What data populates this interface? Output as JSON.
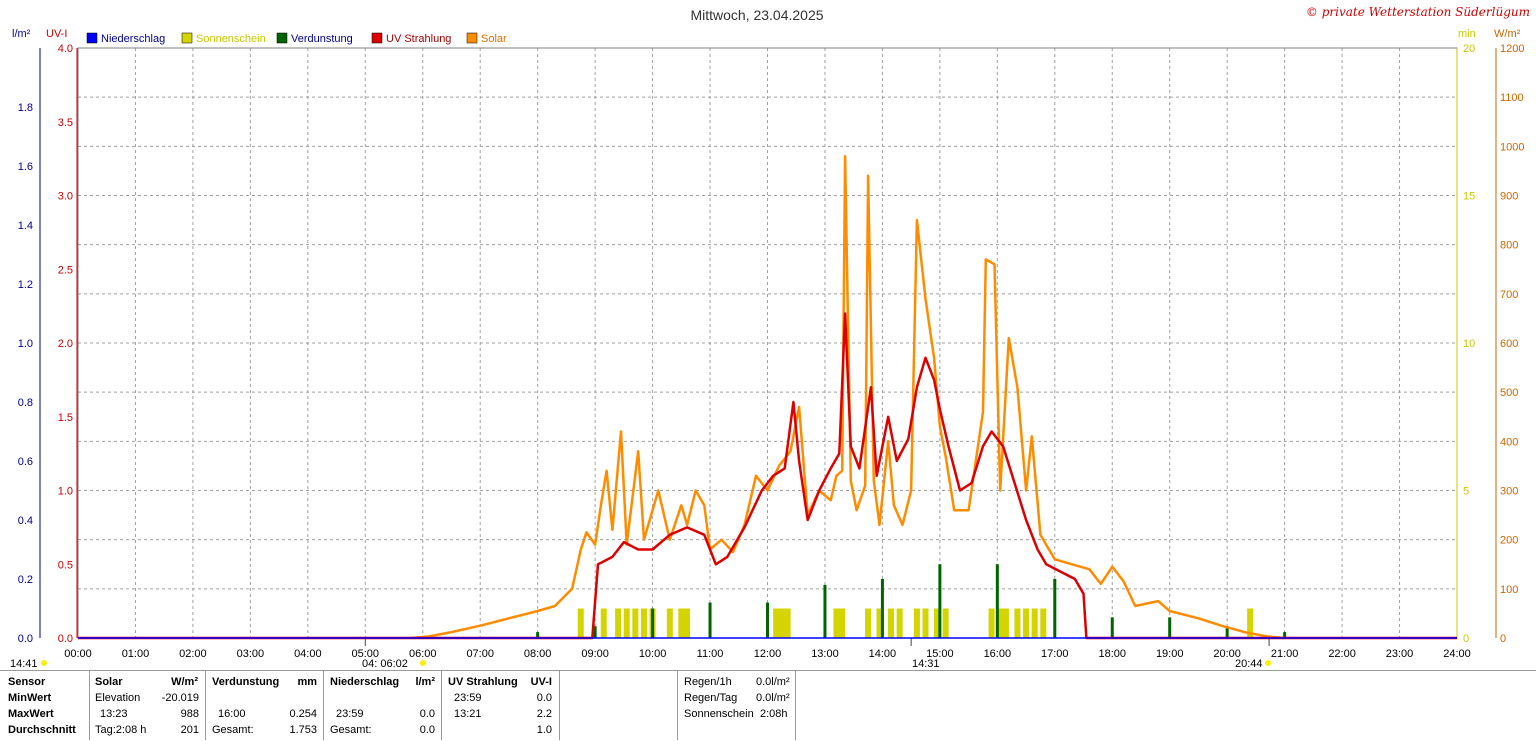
{
  "title": "Mittwoch, 23.04.2025",
  "copyright": "© private Wetterstation Süderlügum",
  "left_axis_units": {
    "rain": "l/m²",
    "uv": "UV-I"
  },
  "right_axis_units": {
    "sun": "min",
    "solar": "W/m²"
  },
  "legend": [
    {
      "label": "Niederschlag",
      "color": "#0000ff",
      "text_color": "#00008b"
    },
    {
      "label": "Sonnenschein",
      "color": "#d4d400",
      "text_color": "#c8c800"
    },
    {
      "label": "Verdunstung",
      "color": "#006400",
      "text_color": "#00008b"
    },
    {
      "label": "UV Strahlung",
      "color": "#dd0000",
      "text_color": "#aa0000"
    },
    {
      "label": "Solar",
      "color": "#ff8c00",
      "text_color": "#e07000"
    }
  ],
  "markers": {
    "left_time": "14:41",
    "sunrise": "04:  06:02",
    "noon": "14:31",
    "sunset": "20:44"
  },
  "chart_data": {
    "type": "line",
    "x_unit": "time of day (h)",
    "xlim": [
      0,
      24
    ],
    "x_tick_labels": [
      "00:00",
      "01:00",
      "02:00",
      "03:00",
      "04:00",
      "05:00",
      "06:00",
      "07:00",
      "08:00",
      "09:00",
      "10:00",
      "11:00",
      "12:00",
      "13:00",
      "14:00",
      "15:00",
      "16:00",
      "17:00",
      "18:00",
      "19:00",
      "20:00",
      "21:00",
      "22:00",
      "23:00",
      "24:00"
    ],
    "axes": {
      "rain": {
        "range": [
          0,
          2.0
        ],
        "ticks": [
          "0.0",
          "0.2",
          "0.4",
          "0.6",
          "0.8",
          "1.0",
          "1.2",
          "1.4",
          "1.6",
          "1.8"
        ],
        "color": "#00008b"
      },
      "uv": {
        "range": [
          0,
          4.0
        ],
        "ticks": [
          "0.0",
          "0.5",
          "1.0",
          "1.5",
          "2.0",
          "2.5",
          "3.0",
          "3.5",
          "4.0"
        ],
        "color": "#cc0000"
      },
      "sun": {
        "range": [
          0,
          20
        ],
        "ticks": [
          "0",
          "5",
          "10",
          "15",
          "20"
        ],
        "color": "#c8c800"
      },
      "solar": {
        "range": [
          0,
          1200
        ],
        "ticks": [
          "0",
          "100",
          "200",
          "300",
          "400",
          "500",
          "600",
          "700",
          "800",
          "900",
          "1000",
          "1100",
          "1200"
        ],
        "color": "#cc6600"
      }
    },
    "grid": true,
    "series": [
      {
        "name": "Solar",
        "axis": "solar",
        "color": "#ff8c00",
        "points": [
          [
            5.8,
            0
          ],
          [
            6.1,
            3
          ],
          [
            6.5,
            12
          ],
          [
            7.0,
            25
          ],
          [
            7.5,
            40
          ],
          [
            8.0,
            55
          ],
          [
            8.3,
            65
          ],
          [
            8.6,
            100
          ],
          [
            8.75,
            180
          ],
          [
            8.85,
            215
          ],
          [
            9.0,
            190
          ],
          [
            9.1,
            270
          ],
          [
            9.2,
            340
          ],
          [
            9.3,
            220
          ],
          [
            9.45,
            420
          ],
          [
            9.55,
            190
          ],
          [
            9.75,
            380
          ],
          [
            9.85,
            200
          ],
          [
            10.1,
            300
          ],
          [
            10.3,
            200
          ],
          [
            10.5,
            270
          ],
          [
            10.6,
            230
          ],
          [
            10.75,
            300
          ],
          [
            10.9,
            270
          ],
          [
            11.0,
            180
          ],
          [
            11.2,
            200
          ],
          [
            11.4,
            175
          ],
          [
            11.6,
            230
          ],
          [
            11.8,
            330
          ],
          [
            12.0,
            300
          ],
          [
            12.2,
            350
          ],
          [
            12.4,
            380
          ],
          [
            12.55,
            470
          ],
          [
            12.7,
            250
          ],
          [
            12.9,
            300
          ],
          [
            13.1,
            280
          ],
          [
            13.2,
            330
          ],
          [
            13.3,
            340
          ],
          [
            13.35,
            980
          ],
          [
            13.45,
            320
          ],
          [
            13.55,
            260
          ],
          [
            13.7,
            310
          ],
          [
            13.75,
            940
          ],
          [
            13.85,
            320
          ],
          [
            13.95,
            230
          ],
          [
            14.1,
            400
          ],
          [
            14.2,
            270
          ],
          [
            14.35,
            230
          ],
          [
            14.5,
            300
          ],
          [
            14.6,
            850
          ],
          [
            14.75,
            690
          ],
          [
            14.9,
            570
          ],
          [
            15.0,
            430
          ],
          [
            15.1,
            370
          ],
          [
            15.25,
            260
          ],
          [
            15.5,
            260
          ],
          [
            15.75,
            460
          ],
          [
            15.8,
            770
          ],
          [
            15.95,
            760
          ],
          [
            16.05,
            300
          ],
          [
            16.2,
            610
          ],
          [
            16.35,
            510
          ],
          [
            16.5,
            300
          ],
          [
            16.6,
            410
          ],
          [
            16.75,
            210
          ],
          [
            16.9,
            180
          ],
          [
            17.0,
            160
          ],
          [
            17.3,
            150
          ],
          [
            17.6,
            140
          ],
          [
            17.8,
            110
          ],
          [
            18.0,
            145
          ],
          [
            18.2,
            115
          ],
          [
            18.4,
            65
          ],
          [
            18.8,
            75
          ],
          [
            19.0,
            55
          ],
          [
            19.5,
            40
          ],
          [
            19.9,
            25
          ],
          [
            20.3,
            12
          ],
          [
            20.7,
            3
          ],
          [
            21.0,
            0
          ]
        ]
      },
      {
        "name": "UV Strahlung",
        "axis": "uv",
        "color": "#dd0000",
        "points": [
          [
            0,
            0
          ],
          [
            8.95,
            0
          ],
          [
            9.05,
            0.5
          ],
          [
            9.3,
            0.55
          ],
          [
            9.5,
            0.65
          ],
          [
            9.75,
            0.6
          ],
          [
            10.0,
            0.6
          ],
          [
            10.3,
            0.7
          ],
          [
            10.6,
            0.75
          ],
          [
            10.9,
            0.7
          ],
          [
            11.1,
            0.5
          ],
          [
            11.3,
            0.55
          ],
          [
            11.6,
            0.75
          ],
          [
            11.9,
            1.0
          ],
          [
            12.1,
            1.1
          ],
          [
            12.3,
            1.15
          ],
          [
            12.45,
            1.6
          ],
          [
            12.55,
            1.2
          ],
          [
            12.7,
            0.8
          ],
          [
            12.9,
            1.0
          ],
          [
            13.1,
            1.15
          ],
          [
            13.25,
            1.25
          ],
          [
            13.35,
            2.2
          ],
          [
            13.45,
            1.3
          ],
          [
            13.6,
            1.15
          ],
          [
            13.8,
            1.7
          ],
          [
            13.9,
            1.1
          ],
          [
            14.1,
            1.5
          ],
          [
            14.25,
            1.2
          ],
          [
            14.45,
            1.35
          ],
          [
            14.6,
            1.7
          ],
          [
            14.75,
            1.9
          ],
          [
            14.9,
            1.75
          ],
          [
            15.0,
            1.55
          ],
          [
            15.15,
            1.3
          ],
          [
            15.35,
            1.0
          ],
          [
            15.55,
            1.05
          ],
          [
            15.75,
            1.3
          ],
          [
            15.9,
            1.4
          ],
          [
            16.1,
            1.3
          ],
          [
            16.3,
            1.05
          ],
          [
            16.5,
            0.8
          ],
          [
            16.7,
            0.6
          ],
          [
            16.85,
            0.5
          ],
          [
            17.1,
            0.45
          ],
          [
            17.35,
            0.4
          ],
          [
            17.5,
            0.3
          ],
          [
            17.55,
            0
          ],
          [
            24,
            0
          ]
        ]
      },
      {
        "name": "Sonnenschein",
        "axis": "sun",
        "color": "#d4d400",
        "type": "bar",
        "bars": [
          [
            8.75,
            1
          ],
          [
            9.15,
            1
          ],
          [
            9.4,
            1
          ],
          [
            9.55,
            1
          ],
          [
            9.7,
            1
          ],
          [
            9.85,
            1
          ],
          [
            10.0,
            1
          ],
          [
            10.3,
            1
          ],
          [
            10.5,
            1
          ],
          [
            10.6,
            1
          ],
          [
            12.15,
            1
          ],
          [
            12.25,
            1
          ],
          [
            12.35,
            1
          ],
          [
            13.2,
            1
          ],
          [
            13.3,
            1
          ],
          [
            13.75,
            1
          ],
          [
            13.95,
            1
          ],
          [
            14.15,
            1
          ],
          [
            14.3,
            1
          ],
          [
            14.6,
            1
          ],
          [
            14.75,
            1
          ],
          [
            14.95,
            1
          ],
          [
            15.1,
            1
          ],
          [
            15.9,
            1
          ],
          [
            16.05,
            1
          ],
          [
            16.15,
            1
          ],
          [
            16.35,
            1
          ],
          [
            16.5,
            1
          ],
          [
            16.65,
            1
          ],
          [
            16.8,
            1
          ],
          [
            20.4,
            1
          ]
        ]
      },
      {
        "name": "Verdunstung",
        "axis": "rain",
        "color": "#006400",
        "type": "bar",
        "bars": [
          [
            8.0,
            0.02
          ],
          [
            9.0,
            0.04
          ],
          [
            10.0,
            0.1
          ],
          [
            11.0,
            0.12
          ],
          [
            12.0,
            0.12
          ],
          [
            13.0,
            0.18
          ],
          [
            14.0,
            0.2
          ],
          [
            15.0,
            0.25
          ],
          [
            16.0,
            0.25
          ],
          [
            17.0,
            0.2
          ],
          [
            18.0,
            0.07
          ],
          [
            19.0,
            0.07
          ],
          [
            20.0,
            0.04
          ],
          [
            21.0,
            0.02
          ]
        ]
      },
      {
        "name": "Niederschlag",
        "axis": "rain",
        "color": "#0000ff",
        "points": [
          [
            0,
            0
          ],
          [
            24,
            0
          ]
        ]
      }
    ]
  },
  "table": {
    "sensor": {
      "head": "Sensor",
      "rows": [
        "MinWert",
        "MaxWert",
        "Durchschnitt"
      ]
    },
    "solar": {
      "head": "Solar",
      "unit": "W/m²",
      "rows": [
        {
          "a": "Elevation",
          "b": "-20.019"
        },
        {
          "a": "13:23",
          "b": "988"
        },
        {
          "a": "Tag:2:08 h",
          "b": "201"
        }
      ]
    },
    "evap": {
      "head": "Verdunstung",
      "unit": "mm",
      "rows": [
        {
          "a": "",
          "b": ""
        },
        {
          "a": "16:00",
          "b": "0.254"
        },
        {
          "a": "Gesamt:",
          "b": "1.753"
        }
      ]
    },
    "rain": {
      "head": "Niederschlag",
      "unit": "l/m²",
      "rows": [
        {
          "a": "",
          "b": ""
        },
        {
          "a": "23:59",
          "b": "0.0"
        },
        {
          "a": "Gesamt:",
          "b": "0.0"
        }
      ]
    },
    "uv": {
      "head": "UV Strahlung",
      "unit": "UV-I",
      "rows": [
        {
          "a": "23:59",
          "b": "0.0"
        },
        {
          "a": "13:21",
          "b": "2.2"
        },
        {
          "a": "",
          "b": "1.0"
        }
      ]
    },
    "extra": [
      {
        "label": "Regen/1h",
        "value": "0.0l/m²"
      },
      {
        "label": "Regen/Tag",
        "value": "0.0l/m²"
      },
      {
        "label": "Sonnenschein",
        "value": "2:08h"
      }
    ]
  }
}
